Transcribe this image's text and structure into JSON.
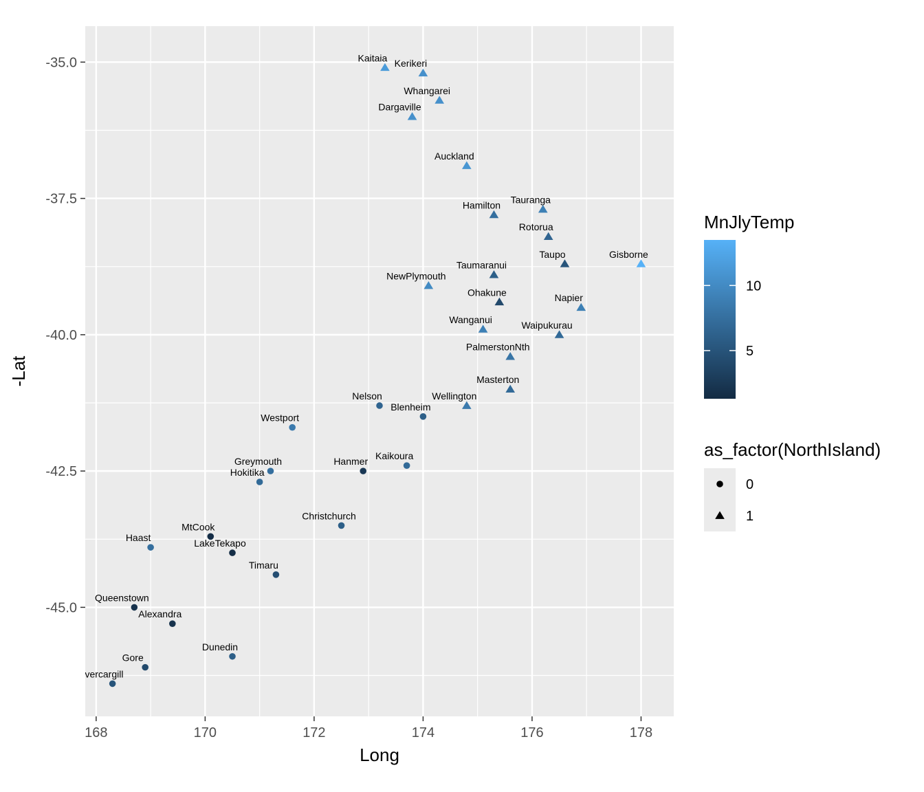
{
  "chart_data": {
    "type": "scatter",
    "xlabel": "Long",
    "ylabel": "-Lat",
    "xlim": [
      167.8,
      178.6
    ],
    "ylim": [
      -47.0,
      -34.34
    ],
    "x_ticks": [
      168,
      170,
      172,
      174,
      176,
      178
    ],
    "x_tick_labels": [
      "168",
      "170",
      "172",
      "174",
      "176",
      "178"
    ],
    "y_ticks": [
      -35.0,
      -37.5,
      -40.0,
      -42.5,
      -45.0
    ],
    "y_tick_labels": [
      "-35.0",
      "-37.5",
      "-40.0",
      "-42.5",
      "-45.0"
    ],
    "grid": true,
    "color_legend": {
      "title": "MnJlyTemp",
      "range": [
        1.3,
        13.5
      ],
      "ticks": [
        5,
        10
      ],
      "tick_labels": [
        "5",
        "10"
      ],
      "low_color": "#132B43",
      "high_color": "#56B1F7",
      "placement": "right"
    },
    "shape_legend": {
      "title": "as_factor(NorthIsland)",
      "entries": [
        {
          "label": "0",
          "shape": "circle"
        },
        {
          "label": "1",
          "shape": "triangle"
        }
      ],
      "placement": "right"
    },
    "points": [
      {
        "name": "Kaitaia",
        "x": 173.3,
        "y": -35.1,
        "temp": 11.5,
        "north": 1
      },
      {
        "name": "Kerikeri",
        "x": 174.0,
        "y": -35.2,
        "temp": 10.5,
        "north": 1
      },
      {
        "name": "Whangarei",
        "x": 174.3,
        "y": -35.7,
        "temp": 10.5,
        "north": 1
      },
      {
        "name": "Dargaville",
        "x": 173.8,
        "y": -36.0,
        "temp": 10.5,
        "north": 1
      },
      {
        "name": "Auckland",
        "x": 174.8,
        "y": -36.9,
        "temp": 11.0,
        "north": 1
      },
      {
        "name": "Tauranga",
        "x": 176.2,
        "y": -37.7,
        "temp": 9.0,
        "north": 1
      },
      {
        "name": "Hamilton",
        "x": 175.3,
        "y": -37.8,
        "temp": 7.5,
        "north": 1
      },
      {
        "name": "Rotorua",
        "x": 176.3,
        "y": -38.2,
        "temp": 6.5,
        "north": 1
      },
      {
        "name": "Gisborne",
        "x": 178.0,
        "y": -38.7,
        "temp": 13.5,
        "north": 1
      },
      {
        "name": "Taupo",
        "x": 176.6,
        "y": -38.7,
        "temp": 5.0,
        "north": 1
      },
      {
        "name": "Taumaranui",
        "x": 175.3,
        "y": -38.9,
        "temp": 6.0,
        "north": 1
      },
      {
        "name": "NewPlymouth",
        "x": 174.1,
        "y": -39.1,
        "temp": 10.0,
        "north": 1
      },
      {
        "name": "Ohakune",
        "x": 175.4,
        "y": -39.4,
        "temp": 4.0,
        "north": 1
      },
      {
        "name": "Napier",
        "x": 176.9,
        "y": -39.5,
        "temp": 9.0,
        "north": 1
      },
      {
        "name": "Wanganui",
        "x": 175.1,
        "y": -39.9,
        "temp": 9.0,
        "north": 1
      },
      {
        "name": "Waipukurau",
        "x": 176.5,
        "y": -40.0,
        "temp": 7.0,
        "north": 1
      },
      {
        "name": "PalmerstonNth",
        "x": 175.6,
        "y": -40.4,
        "temp": 8.0,
        "north": 1
      },
      {
        "name": "Masterton",
        "x": 175.6,
        "y": -41.0,
        "temp": 7.0,
        "north": 1
      },
      {
        "name": "Wellington",
        "x": 174.8,
        "y": -41.3,
        "temp": 8.5,
        "north": 1
      },
      {
        "name": "Nelson",
        "x": 173.2,
        "y": -41.3,
        "temp": 6.5,
        "north": 0
      },
      {
        "name": "Blenheim",
        "x": 174.0,
        "y": -41.5,
        "temp": 6.0,
        "north": 0
      },
      {
        "name": "Westport",
        "x": 171.6,
        "y": -41.7,
        "temp": 8.5,
        "north": 0
      },
      {
        "name": "Kaikoura",
        "x": 173.7,
        "y": -42.4,
        "temp": 7.0,
        "north": 0
      },
      {
        "name": "Greymouth",
        "x": 171.2,
        "y": -42.5,
        "temp": 7.5,
        "north": 0
      },
      {
        "name": "Hanmer",
        "x": 172.9,
        "y": -42.5,
        "temp": 2.5,
        "north": 0
      },
      {
        "name": "Hokitika",
        "x": 171.0,
        "y": -42.7,
        "temp": 7.0,
        "north": 0
      },
      {
        "name": "Christchurch",
        "x": 172.5,
        "y": -43.5,
        "temp": 6.0,
        "north": 0
      },
      {
        "name": "MtCook",
        "x": 170.1,
        "y": -43.7,
        "temp": 1.5,
        "north": 0
      },
      {
        "name": "Haast",
        "x": 169.0,
        "y": -43.9,
        "temp": 7.5,
        "north": 0
      },
      {
        "name": "LakeTekapo",
        "x": 170.5,
        "y": -44.0,
        "temp": 1.5,
        "north": 0
      },
      {
        "name": "Timaru",
        "x": 171.3,
        "y": -44.4,
        "temp": 4.5,
        "north": 0
      },
      {
        "name": "Queenstown",
        "x": 168.7,
        "y": -45.0,
        "temp": 2.0,
        "north": 0
      },
      {
        "name": "Alexandra",
        "x": 169.4,
        "y": -45.3,
        "temp": 2.0,
        "north": 0
      },
      {
        "name": "Dunedin",
        "x": 170.5,
        "y": -45.9,
        "temp": 6.0,
        "north": 0
      },
      {
        "name": "Gore",
        "x": 168.9,
        "y": -46.1,
        "temp": 4.0,
        "north": 0
      },
      {
        "name": "Invercargill",
        "x": 168.3,
        "y": -46.4,
        "temp": 5.0,
        "north": 0
      }
    ]
  }
}
